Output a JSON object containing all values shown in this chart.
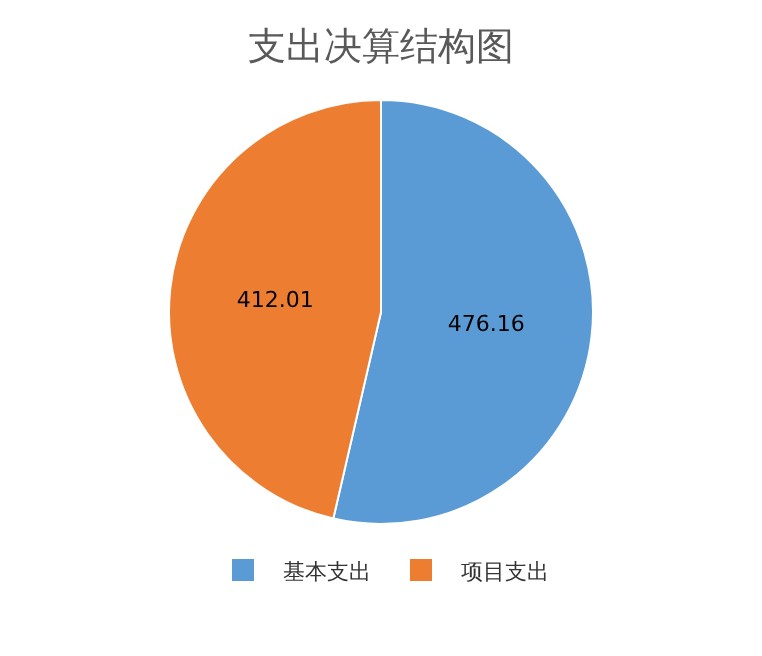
{
  "chart_data": {
    "type": "pie",
    "title": "支出决算结构图",
    "categories": [
      "基本支出",
      "项目支出"
    ],
    "values": [
      476.16,
      412.01
    ],
    "colors": [
      "#5b9bd5",
      "#ed7d31"
    ],
    "data_labels": true,
    "legend": "bottom"
  }
}
